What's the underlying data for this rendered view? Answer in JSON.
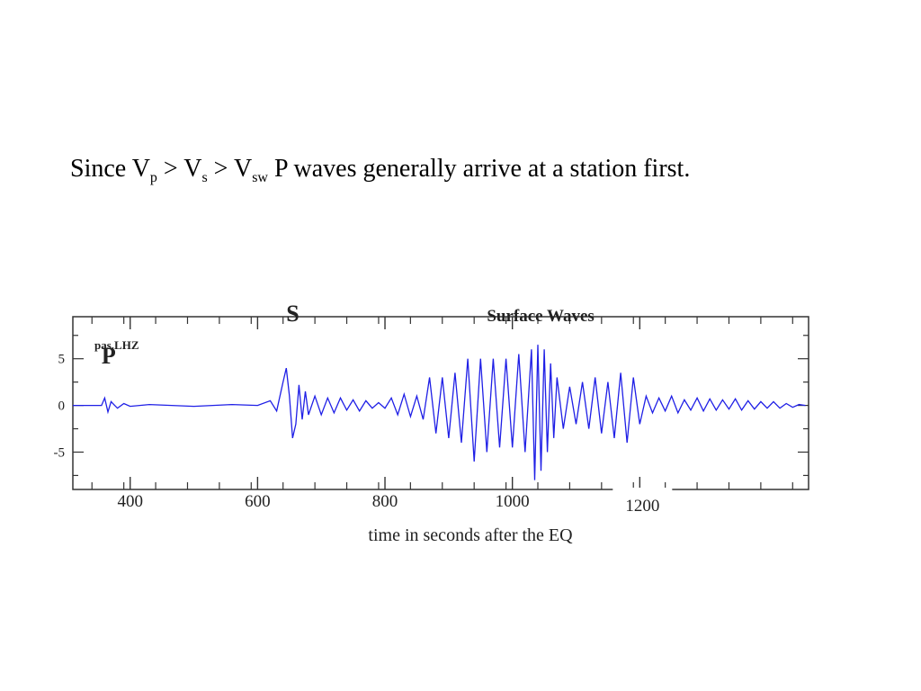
{
  "headline": {
    "part1": "Since V",
    "sub_p": "p",
    "part2": " > V",
    "sub_s": "s",
    "part3": " > V",
    "sub_sw": "sw",
    "part4": " P waves generally arrive at a station first."
  },
  "chart_data": {
    "type": "line",
    "station_label": "pas.LHZ",
    "annotations": [
      {
        "text": "P",
        "x": 355,
        "y": 4.5
      },
      {
        "text": "S",
        "x": 645,
        "y": 9.0
      },
      {
        "text": "Surface Waves",
        "x": 960,
        "y": 9.0
      }
    ],
    "xlabel": "time in seconds  after the EQ",
    "ylabel": "",
    "xlim": [
      310,
      1465
    ],
    "ylim": [
      -9,
      9.5
    ],
    "x_ticks": [
      400,
      600,
      800,
      1000,
      1200
    ],
    "y_ticks": [
      5,
      0,
      -5
    ],
    "y_tick_labels": [
      "5",
      "0",
      "-5"
    ],
    "grid": false,
    "line_color": "#1f1fe6",
    "series": [
      {
        "x": [
          310,
          355,
          360,
          365,
          370,
          380,
          390,
          400,
          430,
          500,
          560,
          600,
          620,
          630,
          640,
          645,
          650,
          655,
          660,
          665,
          670,
          675,
          680,
          690,
          700,
          710,
          720,
          730,
          740,
          750,
          760,
          770,
          780,
          790,
          800,
          810,
          820,
          830,
          840,
          850,
          860,
          870,
          880,
          890,
          900,
          910,
          920,
          930,
          940,
          950,
          960,
          970,
          980,
          990,
          1000,
          1010,
          1020,
          1030,
          1035,
          1040,
          1045,
          1050,
          1055,
          1060,
          1065,
          1070,
          1080,
          1090,
          1100,
          1110,
          1120,
          1130,
          1140,
          1150,
          1160,
          1170,
          1180,
          1190,
          1200,
          1210,
          1220,
          1230,
          1240,
          1250,
          1260,
          1270,
          1280,
          1290,
          1300,
          1310,
          1320,
          1330,
          1340,
          1350,
          1360,
          1370,
          1380,
          1390,
          1400,
          1410,
          1420,
          1430,
          1440,
          1450,
          1460
        ],
        "y": [
          0,
          0,
          0.8,
          -0.7,
          0.4,
          -0.3,
          0.2,
          -0.1,
          0.1,
          -0.1,
          0.1,
          0,
          0.5,
          -0.6,
          2.5,
          4.0,
          1.0,
          -3.5,
          -2.0,
          2.2,
          -1.5,
          1.5,
          -1.0,
          1.0,
          -1.0,
          0.8,
          -0.8,
          0.8,
          -0.5,
          0.6,
          -0.6,
          0.5,
          -0.3,
          0.3,
          -0.3,
          0.8,
          -1.0,
          1.2,
          -1.2,
          1.0,
          -1.5,
          3.0,
          -3.0,
          3.0,
          -3.5,
          3.5,
          -4.0,
          5.0,
          -6.0,
          5.0,
          -5.0,
          5.0,
          -4.5,
          5.0,
          -4.5,
          5.5,
          -5.0,
          6.0,
          -8.0,
          6.5,
          -7.0,
          6.0,
          -5.0,
          4.5,
          -3.5,
          3.0,
          -2.5,
          2.0,
          -2.0,
          2.5,
          -2.5,
          3.0,
          -3.0,
          2.5,
          -3.5,
          3.5,
          -4.0,
          3.0,
          -2.0,
          1.0,
          -0.8,
          0.8,
          -0.6,
          1.0,
          -0.8,
          0.6,
          -0.5,
          0.8,
          -0.6,
          0.7,
          -0.5,
          0.6,
          -0.4,
          0.7,
          -0.5,
          0.5,
          -0.4,
          0.4,
          -0.3,
          0.4,
          -0.3,
          0.2,
          -0.2,
          0.1,
          0
        ]
      }
    ]
  }
}
